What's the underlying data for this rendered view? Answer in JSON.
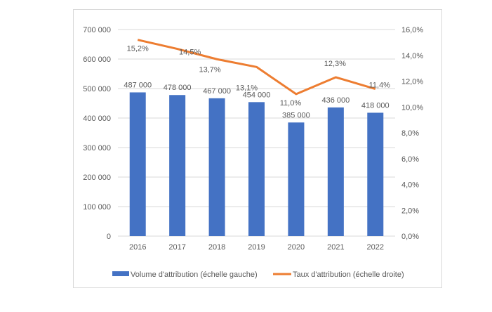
{
  "chart_data": {
    "type": "bar+line",
    "title": "",
    "categories": [
      "2016",
      "2017",
      "2018",
      "2019",
      "2020",
      "2021",
      "2022"
    ],
    "series": [
      {
        "name": "Volume d'attribution (échelle gauche)",
        "type": "bar",
        "axis": "left",
        "color": "#4472C4",
        "values": [
          487000,
          478000,
          467000,
          454000,
          385000,
          436000,
          418000
        ],
        "labels": [
          "487 000",
          "478 000",
          "467 000",
          "454 000",
          "385 000",
          "436 000",
          "418 000"
        ]
      },
      {
        "name": "Taux d'attribution (échelle droite)",
        "type": "line",
        "axis": "right",
        "color": "#ED7D31",
        "values": [
          15.2,
          14.5,
          13.7,
          13.1,
          11.0,
          12.3,
          11.4
        ],
        "labels": [
          "15,2%",
          "14,5%",
          "13,7%",
          "13,1%",
          "11,0%",
          "12,3%",
          "11,4%"
        ]
      }
    ],
    "left_axis": {
      "range": [
        0,
        700000
      ],
      "ticks": [
        "0",
        "100 000",
        "200 000",
        "300 000",
        "400 000",
        "500 000",
        "600 000",
        "700 000"
      ]
    },
    "right_axis": {
      "range": [
        0,
        16
      ],
      "ticks": [
        "0,0%",
        "2,0%",
        "4,0%",
        "6,0%",
        "8,0%",
        "10,0%",
        "12,0%",
        "14,0%",
        "16,0%"
      ]
    },
    "grid": true,
    "legend_position": "bottom"
  }
}
